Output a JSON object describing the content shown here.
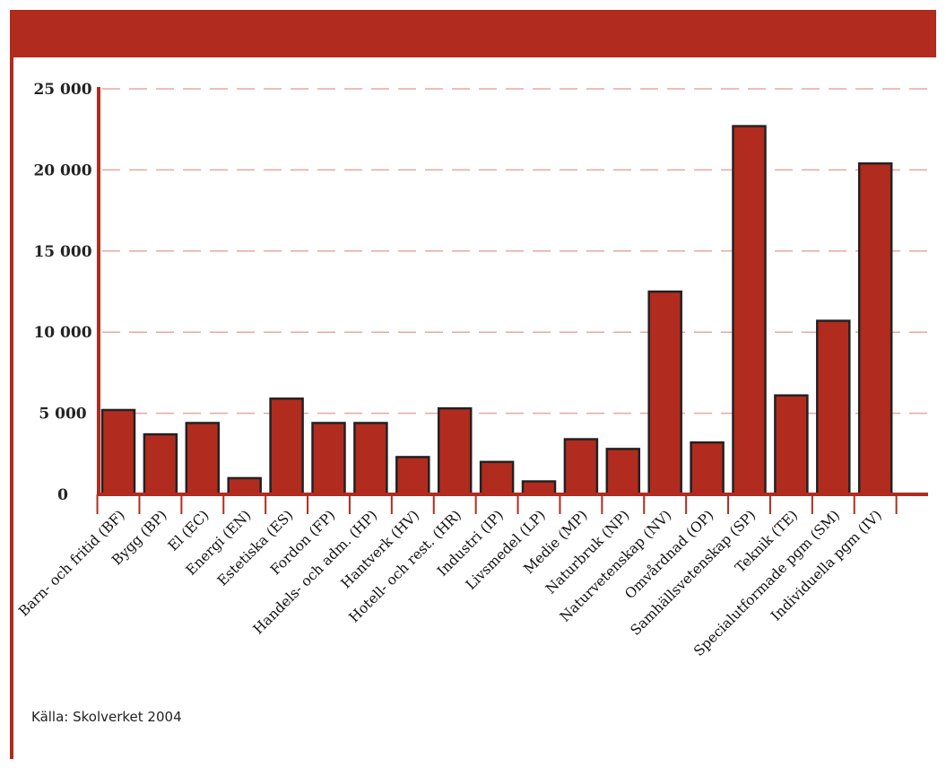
{
  "source_note": "Källa: Skolverket 2004",
  "colors": {
    "accent": "#b22b1f",
    "bar_fill": "#b22b1f",
    "bar_stroke": "#222222",
    "grid": "#e5a8a0",
    "axis": "#b22b1f"
  },
  "chart_data": {
    "type": "bar",
    "title": "",
    "xlabel": "",
    "ylabel": "",
    "ylim": [
      0,
      25000
    ],
    "grid": true,
    "y_ticks": [
      0,
      5000,
      10000,
      15000,
      20000,
      25000
    ],
    "y_tick_labels": [
      "0",
      "5 000",
      "10 000",
      "15 000",
      "20 000",
      "25 000"
    ],
    "categories": [
      "Barn- och fritid (BF)",
      "Bygg (BP)",
      "El (EC)",
      "Energi (EN)",
      "Estetiska (ES)",
      "Fordon (FP)",
      "Handels- och adm. (HP)",
      "Hantverk (HV)",
      "Hotell- och rest. (HR)",
      "Industri (IP)",
      "Livsmedel (LP)",
      "Medie (MP)",
      "Naturbruk (NP)",
      "Naturvetenskap (NV)",
      "Omvårdnad (OP)",
      "Samhällsvetenskap (SP)",
      "Teknik (TE)",
      "Specialutformade pgm (SM)",
      "Individuella pgm (IV)"
    ],
    "values": [
      5200,
      3700,
      4400,
      1000,
      5900,
      4400,
      4400,
      2300,
      5300,
      2000,
      800,
      3400,
      2800,
      12500,
      3200,
      22700,
      6100,
      10700,
      20400
    ]
  }
}
